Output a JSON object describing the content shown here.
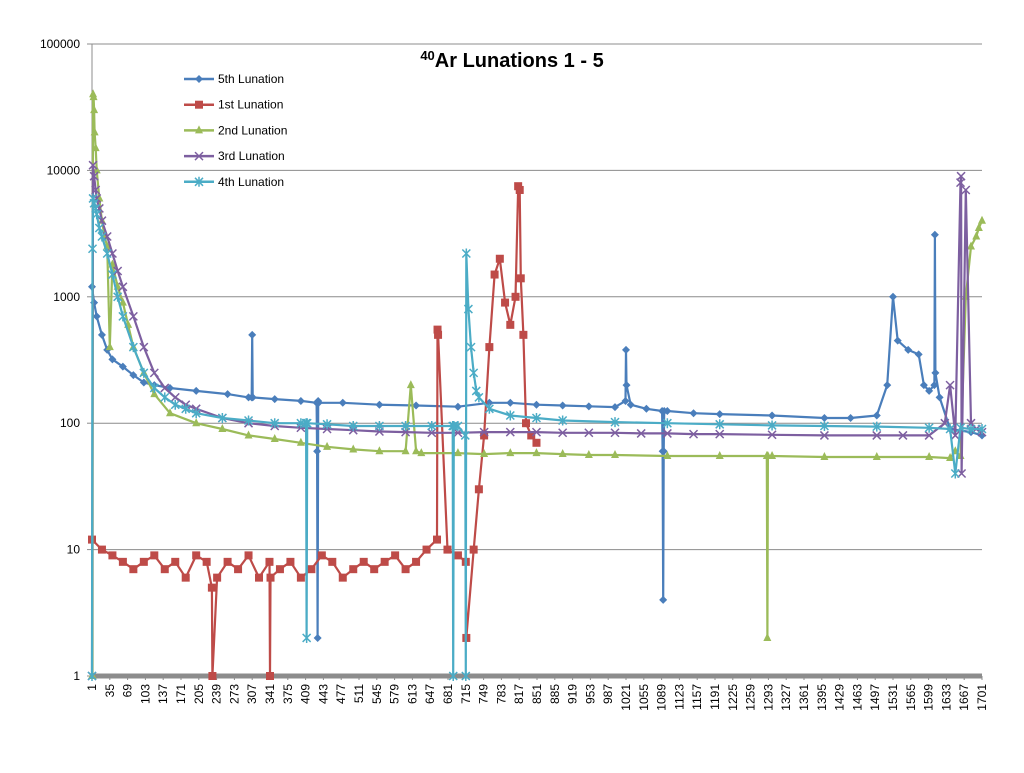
{
  "chart_data": {
    "type": "line",
    "title_sup": "40",
    "title": "Ar Lunations 1 - 5",
    "xlabel": "",
    "ylabel": "",
    "y_scale": "log",
    "ylim": [
      1,
      100000
    ],
    "xlim": [
      1,
      1701
    ],
    "grid": true,
    "legend_position": "top-left",
    "y_ticks": [
      1,
      10,
      100,
      1000,
      10000,
      100000
    ],
    "x_tick_labels": [
      1,
      35,
      69,
      103,
      137,
      171,
      205,
      239,
      273,
      307,
      341,
      375,
      409,
      443,
      477,
      511,
      545,
      579,
      613,
      647,
      681,
      715,
      749,
      783,
      817,
      851,
      885,
      919,
      953,
      987,
      1021,
      1055,
      1089,
      1123,
      1157,
      1191,
      1225,
      1259,
      1293,
      1327,
      1361,
      1395,
      1429,
      1463,
      1497,
      1531,
      1565,
      1599,
      1633,
      1667,
      1701
    ],
    "series": [
      {
        "name": "5th Lunation",
        "color": "#4a7ebb",
        "marker": "diamond",
        "x": [
          1,
          5,
          10,
          20,
          30,
          40,
          60,
          80,
          100,
          120,
          150,
          200,
          260,
          300,
          306,
          307,
          308,
          350,
          400,
          430,
          431,
          432,
          433,
          434,
          480,
          550,
          620,
          700,
          760,
          800,
          850,
          900,
          950,
          1000,
          1020,
          1021,
          1022,
          1030,
          1060,
          1090,
          1091,
          1092,
          1093,
          1094,
          1100,
          1150,
          1200,
          1300,
          1400,
          1450,
          1500,
          1520,
          1531,
          1540,
          1560,
          1580,
          1590,
          1600,
          1610,
          1611,
          1612,
          1620,
          1640,
          1680,
          1701
        ],
        "y": [
          1200,
          900,
          700,
          500,
          380,
          320,
          280,
          240,
          210,
          200,
          190,
          180,
          170,
          160,
          160,
          500,
          160,
          155,
          150,
          145,
          60,
          2,
          150,
          145,
          145,
          140,
          138,
          135,
          145,
          145,
          140,
          138,
          136,
          134,
          150,
          380,
          200,
          140,
          130,
          125,
          60,
          4,
          60,
          125,
          125,
          120,
          118,
          115,
          110,
          110,
          115,
          200,
          1000,
          450,
          380,
          350,
          200,
          180,
          200,
          3100,
          250,
          160,
          90,
          85,
          80
        ]
      },
      {
        "name": "1st Lunation",
        "color": "#be4b48",
        "marker": "square",
        "x": [
          1,
          20,
          40,
          60,
          80,
          100,
          120,
          140,
          160,
          180,
          200,
          220,
          230,
          231,
          240,
          260,
          280,
          300,
          320,
          340,
          341,
          342,
          360,
          380,
          400,
          420,
          440,
          460,
          480,
          500,
          520,
          540,
          560,
          580,
          600,
          620,
          640,
          660,
          661,
          662,
          680,
          700,
          715,
          716,
          730,
          740,
          750,
          760,
          770,
          780,
          790,
          800,
          810,
          815,
          818,
          820,
          825,
          830,
          840,
          850
        ],
        "y": [
          12,
          10,
          9,
          8,
          7,
          8,
          9,
          7,
          8,
          6,
          9,
          8,
          5,
          1,
          6,
          8,
          7,
          9,
          6,
          8,
          1,
          6,
          7,
          8,
          6,
          7,
          9,
          8,
          6,
          7,
          8,
          7,
          8,
          9,
          7,
          8,
          10,
          12,
          550,
          500,
          10,
          9,
          8,
          2,
          10,
          30,
          80,
          400,
          1500,
          2000,
          900,
          600,
          1000,
          7500,
          7000,
          1400,
          500,
          100,
          80,
          70
        ]
      },
      {
        "name": "2nd Lunation",
        "color": "#9bbb59",
        "marker": "triangle",
        "x": [
          1,
          2,
          3,
          4,
          5,
          6,
          8,
          10,
          15,
          20,
          25,
          30,
          35,
          40,
          50,
          60,
          70,
          80,
          100,
          120,
          150,
          200,
          250,
          300,
          350,
          400,
          450,
          500,
          550,
          600,
          610,
          620,
          630,
          700,
          750,
          800,
          850,
          900,
          950,
          1000,
          1100,
          1200,
          1290,
          1291,
          1292,
          1300,
          1400,
          1500,
          1600,
          1640,
          1650,
          1660,
          1670,
          1680,
          1690,
          1695,
          1701
        ],
        "y": [
          1,
          1,
          40000,
          38000,
          30000,
          20000,
          15000,
          10000,
          6000,
          4000,
          3000,
          2500,
          400,
          1800,
          1200,
          900,
          600,
          400,
          250,
          170,
          120,
          100,
          90,
          80,
          75,
          70,
          65,
          62,
          60,
          60,
          200,
          60,
          58,
          58,
          57,
          58,
          58,
          57,
          56,
          56,
          55,
          55,
          55,
          2,
          55,
          55,
          54,
          54,
          54,
          53,
          60,
          55,
          1000,
          2500,
          3000,
          3500,
          4000
        ]
      },
      {
        "name": "3rd Lunation",
        "color": "#7d5fa0",
        "marker": "x",
        "x": [
          1,
          3,
          5,
          8,
          10,
          15,
          20,
          30,
          40,
          50,
          60,
          80,
          100,
          120,
          140,
          160,
          180,
          200,
          250,
          300,
          350,
          400,
          450,
          500,
          550,
          600,
          650,
          700,
          750,
          800,
          850,
          900,
          950,
          1000,
          1050,
          1100,
          1150,
          1200,
          1300,
          1400,
          1500,
          1550,
          1600,
          1630,
          1640,
          1650,
          1660,
          1661,
          1662,
          1670,
          1680,
          1690,
          1701
        ],
        "y": [
          1,
          11000,
          9000,
          7000,
          6000,
          5000,
          4000,
          3000,
          2200,
          1600,
          1200,
          700,
          400,
          250,
          190,
          160,
          140,
          130,
          110,
          100,
          95,
          92,
          90,
          88,
          86,
          85,
          84,
          84,
          85,
          85,
          85,
          84,
          84,
          84,
          83,
          83,
          82,
          82,
          81,
          80,
          80,
          80,
          80,
          100,
          200,
          80,
          8000,
          9000,
          40,
          7000,
          100,
          90,
          85
        ]
      },
      {
        "name": "4th Lunation",
        "color": "#4bacc6",
        "marker": "asterisk",
        "x": [
          1,
          2,
          3,
          5,
          8,
          10,
          15,
          20,
          30,
          40,
          50,
          60,
          80,
          100,
          120,
          140,
          160,
          180,
          200,
          250,
          300,
          350,
          400,
          410,
          411,
          412,
          450,
          500,
          550,
          600,
          650,
          690,
          691,
          692,
          700,
          714,
          715,
          716,
          720,
          725,
          730,
          735,
          740,
          760,
          800,
          850,
          900,
          1000,
          1100,
          1200,
          1300,
          1400,
          1500,
          1600,
          1640,
          1650,
          1660,
          1680,
          1701
        ],
        "y": [
          1,
          2400,
          6000,
          5500,
          5000,
          4500,
          3500,
          3000,
          2200,
          1500,
          1000,
          700,
          400,
          250,
          190,
          160,
          140,
          130,
          120,
          110,
          105,
          100,
          100,
          100,
          2,
          100,
          98,
          95,
          95,
          95,
          95,
          95,
          1,
          95,
          95,
          80,
          1,
          2200,
          800,
          400,
          250,
          180,
          160,
          130,
          115,
          110,
          105,
          102,
          100,
          98,
          96,
          95,
          94,
          92,
          90,
          40,
          92,
          90,
          90
        ]
      }
    ]
  }
}
